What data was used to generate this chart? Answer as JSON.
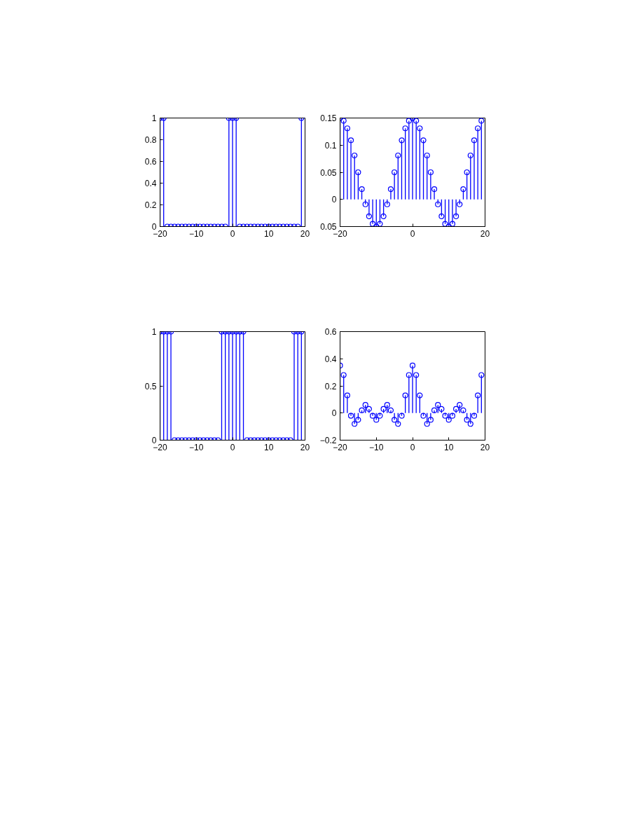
{
  "chart_data": [
    {
      "type": "lollipop",
      "x": [
        -20,
        -19,
        -18,
        -17,
        -16,
        -15,
        -14,
        -13,
        -12,
        -11,
        -10,
        -9,
        -8,
        -7,
        -6,
        -5,
        -4,
        -3,
        -2,
        -1,
        0,
        1,
        2,
        3,
        4,
        5,
        6,
        7,
        8,
        9,
        10,
        11,
        12,
        13,
        14,
        15,
        16,
        17,
        18,
        19
      ],
      "series": [
        {
          "color": "#0000ff",
          "values": [
            1,
            1,
            0,
            0,
            0,
            0,
            0,
            0,
            0,
            0,
            0,
            0,
            0,
            0,
            0,
            0,
            0,
            0,
            0,
            1,
            1,
            1,
            0,
            0,
            0,
            0,
            0,
            0,
            0,
            0,
            0,
            0,
            0,
            0,
            0,
            0,
            0,
            0,
            0,
            1
          ]
        }
      ],
      "xlim": [
        -20,
        20
      ],
      "xticks": [
        -20,
        -10,
        0,
        10,
        20
      ],
      "ylim": [
        0,
        1
      ],
      "yticks": [
        0,
        0.2,
        0.4,
        0.6,
        0.8,
        1
      ],
      "marker": "circle"
    },
    {
      "type": "lollipop",
      "x": [
        -20,
        -19,
        -18,
        -17,
        -16,
        -15,
        -14,
        -13,
        -12,
        -11,
        -10,
        -9,
        -8,
        -7,
        -6,
        -5,
        -4,
        -3,
        -2,
        -1,
        0,
        1,
        2,
        3,
        4,
        5,
        6,
        7,
        8,
        9,
        10,
        11,
        12,
        13,
        14,
        15,
        16,
        17,
        18,
        19
      ],
      "series": [
        {
          "color": "#0000ff",
          "values": [
            0.15,
            0.145,
            0.131,
            0.109,
            0.081,
            0.05,
            0.019,
            -0.009,
            -0.031,
            -0.045,
            -0.05,
            -0.045,
            -0.031,
            -0.009,
            0.019,
            0.05,
            0.081,
            0.109,
            0.131,
            0.145,
            0.15,
            0.145,
            0.131,
            0.109,
            0.081,
            0.05,
            0.019,
            -0.009,
            -0.031,
            -0.045,
            -0.05,
            -0.045,
            -0.031,
            -0.009,
            0.019,
            0.05,
            0.081,
            0.109,
            0.131,
            0.145
          ]
        }
      ],
      "xlim": [
        -20,
        20
      ],
      "xticks": [
        -20,
        0,
        20
      ],
      "ylim": [
        -0.05,
        0.15
      ],
      "yticks": [
        {
          "value": -0.05,
          "label": "0.05"
        },
        0,
        0.05,
        0.1,
        0.15
      ],
      "marker": "circle"
    },
    {
      "type": "lollipop",
      "x": [
        -20,
        -19,
        -18,
        -17,
        -16,
        -15,
        -14,
        -13,
        -12,
        -11,
        -10,
        -9,
        -8,
        -7,
        -6,
        -5,
        -4,
        -3,
        -2,
        -1,
        0,
        1,
        2,
        3,
        4,
        5,
        6,
        7,
        8,
        9,
        10,
        11,
        12,
        13,
        14,
        15,
        16,
        17,
        18,
        19
      ],
      "series": [
        {
          "color": "#0000ff",
          "values": [
            1,
            1,
            1,
            1,
            0,
            0,
            0,
            0,
            0,
            0,
            0,
            0,
            0,
            0,
            0,
            0,
            0,
            1,
            1,
            1,
            1,
            1,
            1,
            1,
            0,
            0,
            0,
            0,
            0,
            0,
            0,
            0,
            0,
            0,
            0,
            0,
            0,
            1,
            1,
            1
          ]
        }
      ],
      "xlim": [
        -20,
        20
      ],
      "xticks": [
        -20,
        -10,
        0,
        10,
        20
      ],
      "ylim": [
        0,
        1
      ],
      "yticks": [
        0,
        0.5,
        1
      ],
      "marker": "circle"
    },
    {
      "type": "lollipop",
      "x": [
        -20,
        -19,
        -18,
        -17,
        -16,
        -15,
        -14,
        -13,
        -12,
        -11,
        -10,
        -9,
        -8,
        -7,
        -6,
        -5,
        -4,
        -3,
        -2,
        -1,
        0,
        1,
        2,
        3,
        4,
        5,
        6,
        7,
        8,
        9,
        10,
        11,
        12,
        13,
        14,
        15,
        16,
        17,
        18,
        19
      ],
      "series": [
        {
          "color": "#0000ff",
          "values": [
            0.35,
            0.28,
            0.13,
            -0.02,
            -0.08,
            -0.05,
            0.02,
            0.06,
            0.03,
            -0.02,
            -0.05,
            -0.02,
            0.03,
            0.06,
            0.02,
            -0.05,
            -0.08,
            -0.02,
            0.13,
            0.28,
            0.35,
            0.28,
            0.13,
            -0.02,
            -0.08,
            -0.05,
            0.02,
            0.06,
            0.03,
            -0.02,
            -0.05,
            -0.02,
            0.03,
            0.06,
            0.02,
            -0.05,
            -0.08,
            -0.02,
            0.13,
            0.28
          ]
        }
      ],
      "xlim": [
        -20,
        20
      ],
      "xticks": [
        -20,
        -10,
        0,
        10,
        20
      ],
      "ylim": [
        -0.2,
        0.6
      ],
      "yticks": [
        -0.2,
        0,
        0.2,
        0.4,
        0.6
      ],
      "marker": "circle"
    }
  ]
}
